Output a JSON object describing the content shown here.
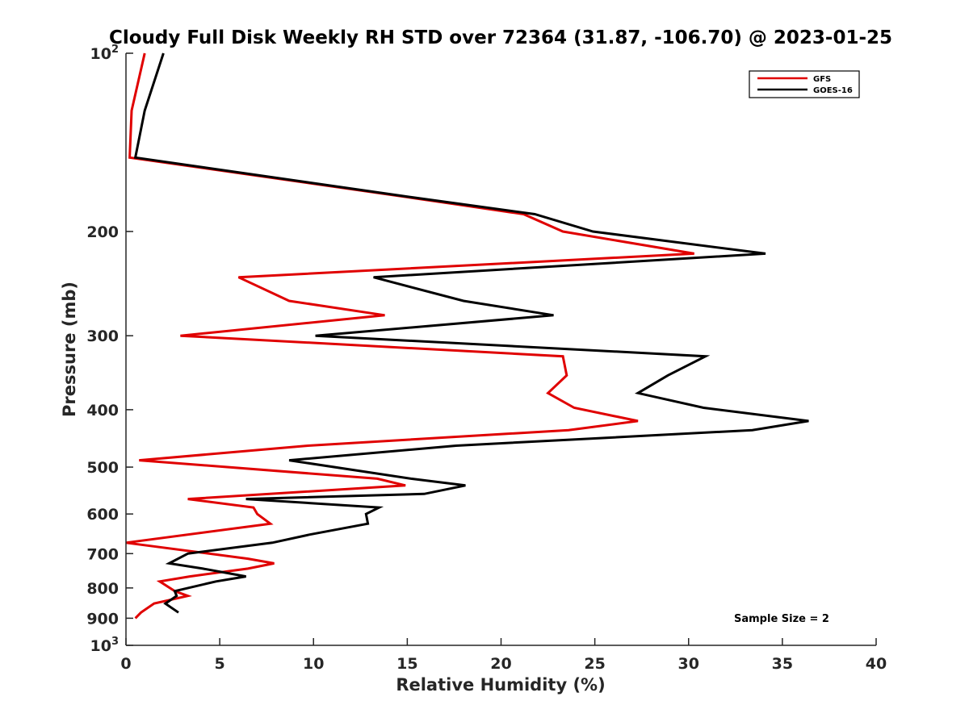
{
  "chart_data": {
    "type": "line",
    "title": "Cloudy Full Disk Weekly RH STD over 72364 (31.87, -106.70) @ 2023-01-25",
    "xlabel": "Relative Humidity (%)",
    "ylabel": "Pressure (mb)",
    "xlim": [
      0,
      40
    ],
    "ylim": [
      100,
      1000
    ],
    "y_scale": "log",
    "y_reversed": true,
    "x_ticks": [
      0,
      5,
      10,
      15,
      20,
      25,
      30,
      35,
      40
    ],
    "x_tick_labels": [
      "0",
      "5",
      "10",
      "15",
      "20",
      "25",
      "30",
      "35",
      "40"
    ],
    "y_ticks": [
      200,
      300,
      400,
      500,
      600,
      700,
      800,
      900
    ],
    "y_tick_labels": [
      "200",
      "300",
      "400",
      "500",
      "600",
      "700",
      "800",
      "900"
    ],
    "y_end_ticks": [
      {
        "value": 100,
        "base": "10",
        "exp": "2"
      },
      {
        "value": 1000,
        "base": "10",
        "exp": "3"
      }
    ],
    "grid": false,
    "legend_position": "top-right",
    "annotation": "Sample Size = 2",
    "series": [
      {
        "name": "GFS",
        "color": "#e00000",
        "points": [
          [
            1.0,
            100
          ],
          [
            0.3,
            125
          ],
          [
            0.2,
            150
          ],
          [
            15.0,
            175
          ],
          [
            21.2,
            187
          ],
          [
            23.3,
            200
          ],
          [
            30.3,
            218
          ],
          [
            6.0,
            239
          ],
          [
            8.7,
            262
          ],
          [
            13.8,
            277
          ],
          [
            2.9,
            300
          ],
          [
            23.3,
            325
          ],
          [
            23.5,
            350
          ],
          [
            22.5,
            375
          ],
          [
            23.9,
            397
          ],
          [
            27.3,
            418
          ],
          [
            23.6,
            433
          ],
          [
            9.7,
            460
          ],
          [
            0.7,
            487
          ],
          [
            13.4,
            523
          ],
          [
            14.9,
            537
          ],
          [
            3.3,
            566
          ],
          [
            6.8,
            585
          ],
          [
            7.0,
            600
          ],
          [
            7.7,
            623
          ],
          [
            0.0,
            671
          ],
          [
            6.5,
            714
          ],
          [
            7.9,
            727
          ],
          [
            6.5,
            742
          ],
          [
            3.4,
            765
          ],
          [
            1.8,
            780
          ],
          [
            2.6,
            810
          ],
          [
            3.3,
            825
          ],
          [
            1.5,
            850
          ],
          [
            0.8,
            880
          ],
          [
            0.5,
            900
          ]
        ]
      },
      {
        "name": "GOES-16",
        "color": "#000000",
        "points": [
          [
            2.0,
            100
          ],
          [
            1.0,
            125
          ],
          [
            0.5,
            150
          ],
          [
            15.2,
            175
          ],
          [
            21.8,
            187
          ],
          [
            24.9,
            200
          ],
          [
            34.1,
            218
          ],
          [
            13.2,
            239
          ],
          [
            18.0,
            262
          ],
          [
            22.8,
            277
          ],
          [
            10.1,
            300
          ],
          [
            30.9,
            325
          ],
          [
            28.9,
            350
          ],
          [
            27.3,
            375
          ],
          [
            30.8,
            397
          ],
          [
            36.4,
            418
          ],
          [
            33.4,
            433
          ],
          [
            17.6,
            460
          ],
          [
            8.7,
            487
          ],
          [
            15.2,
            523
          ],
          [
            18.1,
            537
          ],
          [
            15.9,
            555
          ],
          [
            6.4,
            566
          ],
          [
            13.5,
            585
          ],
          [
            12.8,
            600
          ],
          [
            12.9,
            623
          ],
          [
            9.8,
            650
          ],
          [
            7.8,
            671
          ],
          [
            3.3,
            700
          ],
          [
            2.3,
            727
          ],
          [
            4.1,
            742
          ],
          [
            6.4,
            765
          ],
          [
            4.8,
            780
          ],
          [
            2.6,
            810
          ],
          [
            2.7,
            825
          ],
          [
            2.1,
            850
          ],
          [
            2.8,
            880
          ]
        ]
      }
    ]
  }
}
